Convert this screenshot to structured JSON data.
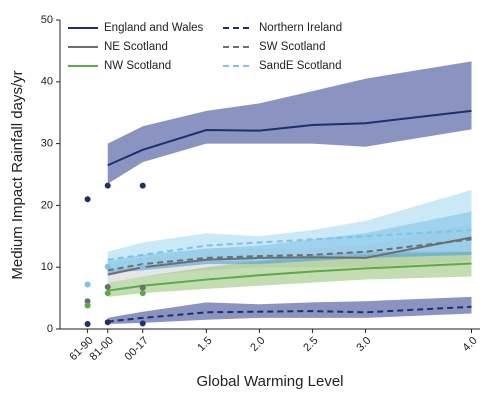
{
  "chart_data": {
    "type": "line",
    "x_label": "Global Warming Level",
    "y_label": "Medium Impact Rainfall days/yr",
    "xlim": [
      0.12,
      4.08
    ],
    "ylim": [
      0,
      50
    ],
    "xticks": [
      {
        "value": 0.38,
        "label": "61-90"
      },
      {
        "value": 0.57,
        "label": "81-00"
      },
      {
        "value": 0.9,
        "label": "00-17"
      },
      {
        "value": 1.5,
        "label": "1.5"
      },
      {
        "value": 2,
        "label": "2.0"
      },
      {
        "value": 2.5,
        "label": "2.5"
      },
      {
        "value": 3,
        "label": "3.0"
      },
      {
        "value": 4,
        "label": "4.0"
      }
    ],
    "yticks": [
      0,
      10,
      20,
      30,
      40,
      50
    ],
    "legend": "upper left",
    "x": [
      0.57,
      0.9,
      1.5,
      2,
      2.5,
      3,
      4
    ],
    "obs_x": [
      0.38,
      0.57,
      0.9
    ],
    "series": [
      {
        "name": "England and Wales",
        "color": "#1e2f6e",
        "dashed": false,
        "band_color": "#3e4c96",
        "values": [
          26.5,
          29,
          32.2,
          32.1,
          33,
          33.3,
          35.3
        ],
        "lower": [
          23.5,
          27,
          30,
          30,
          30,
          29.5,
          32.3
        ],
        "upper": [
          30,
          32.8,
          35.3,
          36.5,
          38.5,
          40.5,
          43.3
        ],
        "observed": [
          21,
          23.2,
          23.2
        ]
      },
      {
        "name": "NE Scotland",
        "color": "#6d6e71",
        "dashed": false,
        "band_color": "#d4d4d4",
        "values": [
          8.8,
          10,
          11.2,
          11.5,
          11.6,
          11.5,
          14.8
        ],
        "lower": [
          7.5,
          8.5,
          9.5,
          10,
          10,
          10,
          11
        ],
        "upper": [
          10.5,
          11.5,
          13,
          13,
          13,
          13.5,
          17
        ],
        "observed": [
          4.5,
          6.8,
          6.7
        ]
      },
      {
        "name": "NW Scotland",
        "color": "#5aab47",
        "dashed": false,
        "band_color": "#9cc47f",
        "values": [
          6.2,
          7,
          8,
          8.7,
          9.3,
          9.8,
          10.6
        ],
        "lower": [
          5.2,
          5.8,
          6.5,
          7,
          7.5,
          8,
          8.5
        ],
        "upper": [
          7.5,
          8.5,
          10,
          11,
          11.5,
          12,
          12.5
        ],
        "observed": [
          3.8,
          5.8,
          5.8
        ]
      },
      {
        "name": "Northern Ireland",
        "color": "#1e2f6e",
        "dashed": true,
        "band_color": "#3e4c96",
        "values": [
          1.2,
          1.8,
          2.7,
          2.8,
          2.9,
          2.7,
          3.6
        ],
        "lower": [
          0.8,
          1,
          1.5,
          1.8,
          1.8,
          1.8,
          2.5
        ],
        "upper": [
          1.8,
          2.8,
          4.3,
          4,
          4.3,
          4.5,
          5.2
        ],
        "observed": [
          0.8,
          1.1,
          0.9
        ]
      },
      {
        "name": "SW Scotland",
        "color": "#6d6e71",
        "dashed": true,
        "band_color": "#4aa3d6",
        "values": [
          9.5,
          10.5,
          11.5,
          11.8,
          12,
          12.5,
          14.5
        ],
        "lower": [
          9,
          9.5,
          10.5,
          10.5,
          11,
          11.5,
          12
        ],
        "upper": [
          11,
          12,
          13,
          13.5,
          14.5,
          15.5,
          19
        ]
      },
      {
        "name": "SandE Scotland",
        "color": "#7cc3e8",
        "dashed": true,
        "band_color": "#a8d8f0",
        "values": [
          11.2,
          12,
          13.5,
          14,
          14.5,
          15,
          16
        ],
        "lower": [
          9.5,
          10,
          11,
          11,
          12,
          12.5,
          12.5
        ],
        "upper": [
          12.5,
          14,
          15.5,
          15,
          16,
          17.5,
          22.5
        ],
        "observed": [
          7.2,
          10.1,
          10
        ]
      }
    ]
  }
}
